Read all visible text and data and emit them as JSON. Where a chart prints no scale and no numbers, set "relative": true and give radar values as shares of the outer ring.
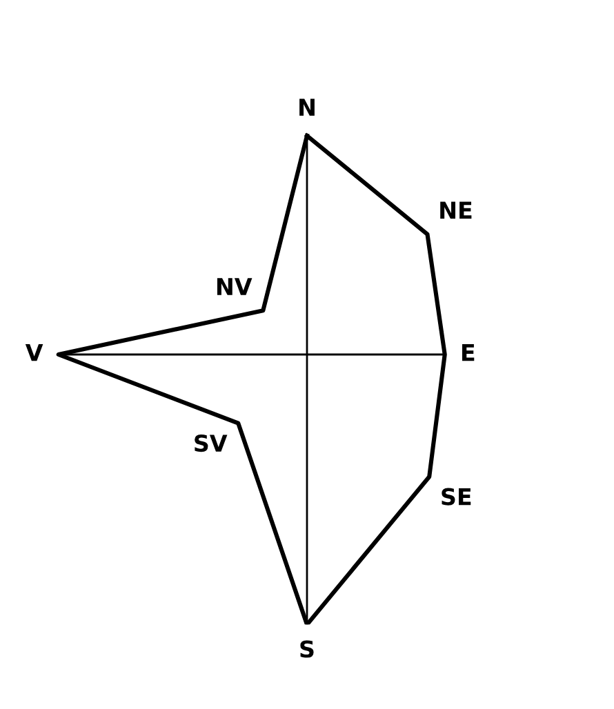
{
  "chart_data": {
    "type": "radar",
    "relative": true,
    "categories": [
      "N",
      "NE",
      "E",
      "SE",
      "S",
      "SV",
      "V",
      "NV"
    ],
    "series": [
      {
        "color": "#000000",
        "values": [
          0.81,
          0.63,
          0.51,
          0.64,
          1,
          0.36,
          0.92,
          0.23
        ]
      }
    ],
    "marker": "none",
    "line_style": "solid"
  }
}
